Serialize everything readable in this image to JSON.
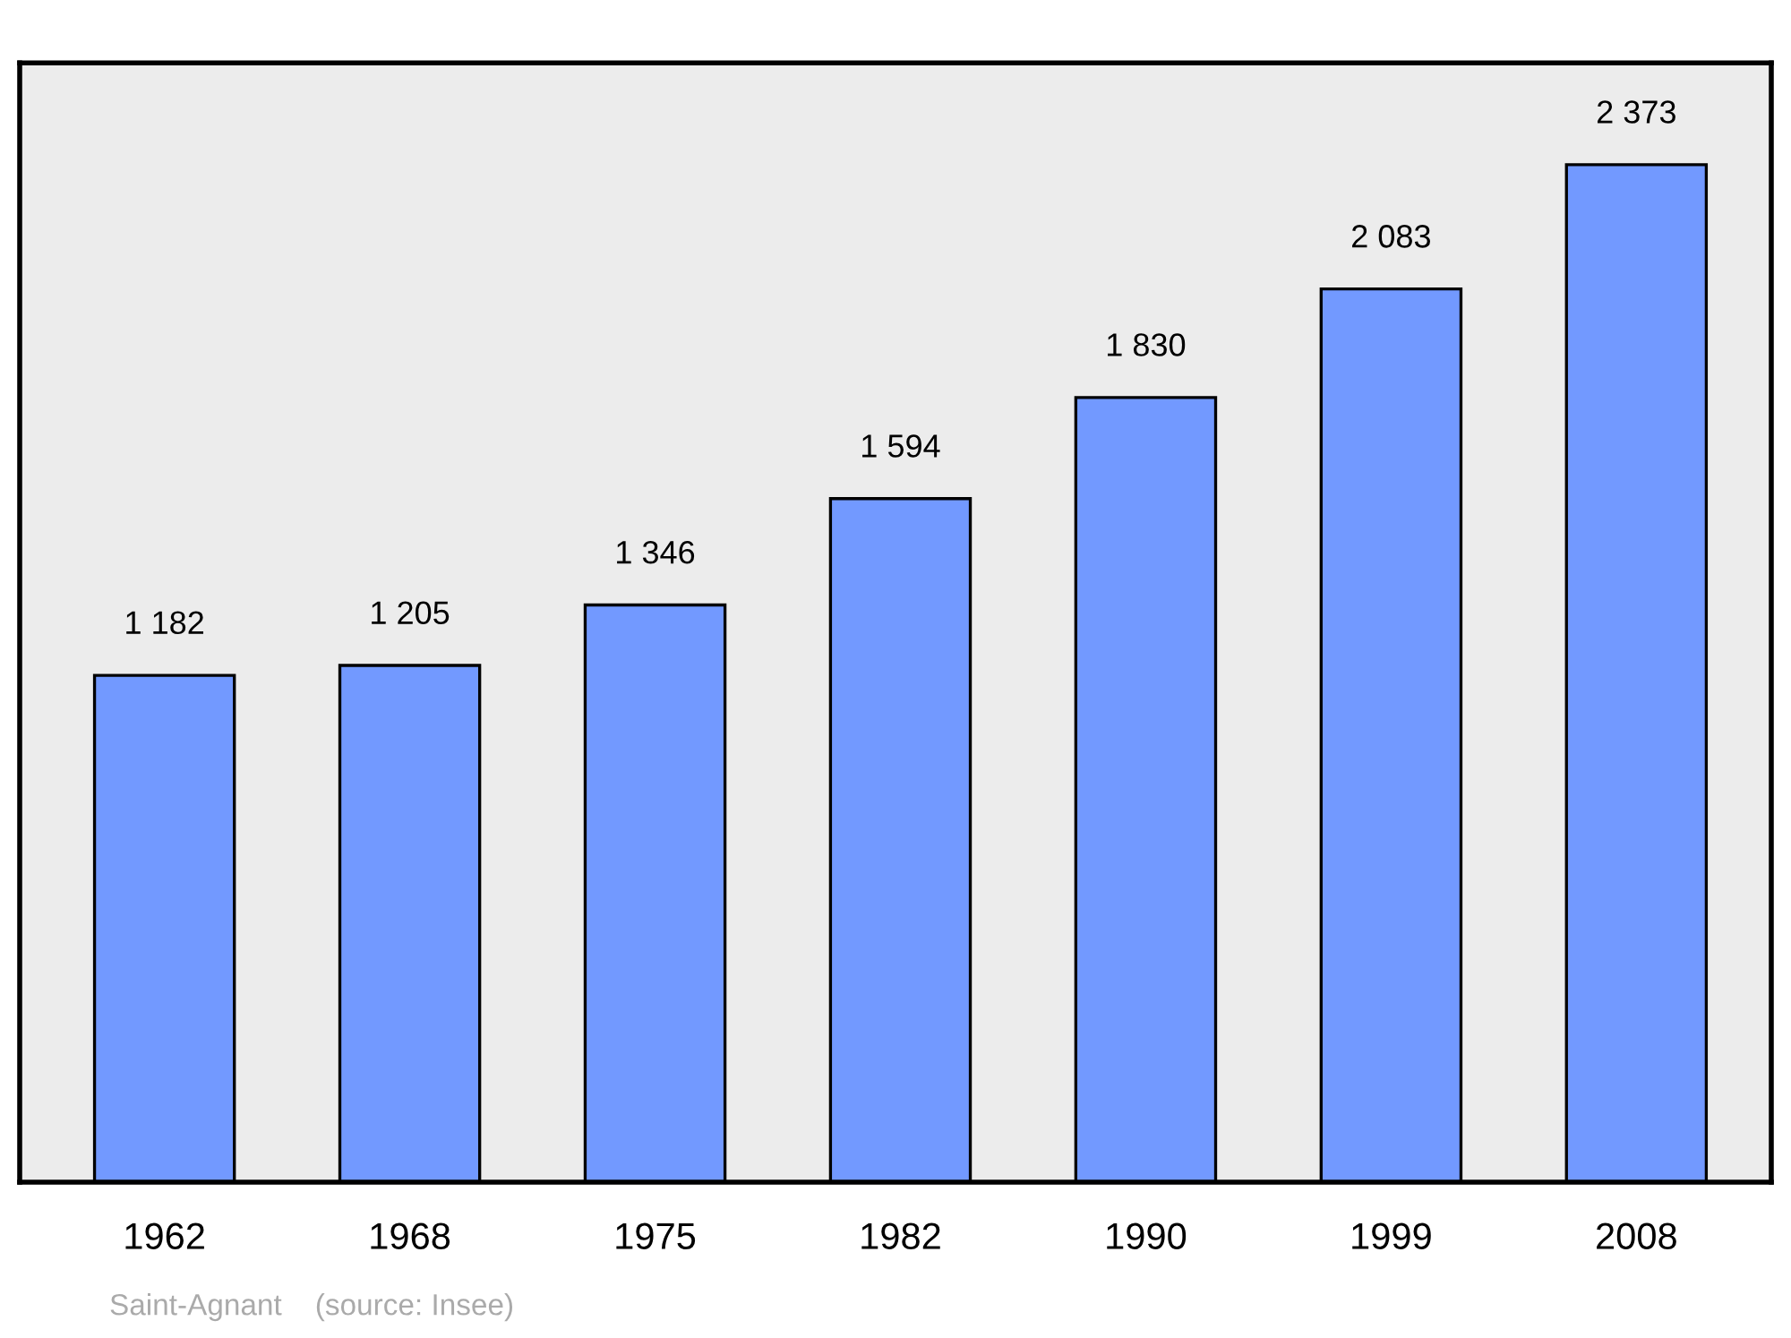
{
  "chart_data": {
    "type": "bar",
    "categories": [
      "1962",
      "1968",
      "1975",
      "1982",
      "1990",
      "1999",
      "2008"
    ],
    "values": [
      1182,
      1205,
      1346,
      1594,
      1830,
      2083,
      2373
    ],
    "value_labels": [
      "1 182",
      "1 205",
      "1 346",
      "1 594",
      "1 830",
      "2 083",
      "2 373"
    ],
    "color": "#7299ff",
    "annotations": [
      "Saint-Agnant    (source: Insee)"
    ],
    "grid": false,
    "tick_labels": "x"
  }
}
